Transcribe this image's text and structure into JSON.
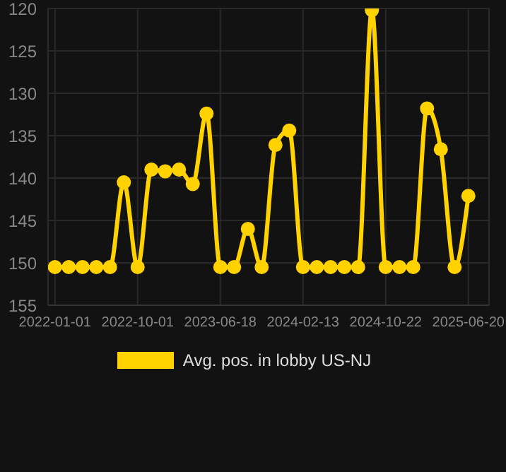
{
  "chart_data": {
    "type": "line",
    "categories": [
      "2022-01-01",
      null,
      null,
      null,
      null,
      null,
      "2022-10-01",
      null,
      null,
      null,
      null,
      null,
      "2023-06-18",
      null,
      null,
      null,
      null,
      null,
      "2024-02-13",
      null,
      null,
      null,
      null,
      null,
      "2024-10-22",
      null,
      null,
      null,
      null,
      null,
      "2025-06-20"
    ],
    "series": [
      {
        "name": "Avg. pos. in lobby US-NJ",
        "color": "#ffd200",
        "values": [
          150.5,
          150.5,
          150.5,
          150.5,
          150.5,
          140.5,
          150.5,
          139,
          139.2,
          139,
          140.7,
          132.4,
          150.5,
          150.5,
          146,
          150.5,
          136.1,
          134.4,
          150.5,
          150.5,
          150.5,
          150.5,
          150.5,
          120.2,
          150.5,
          150.5,
          150.5,
          131.8,
          136.6,
          150.5,
          142.1
        ]
      }
    ],
    "ylim": [
      155,
      120
    ],
    "yticks": [
      120,
      125,
      130,
      135,
      140,
      145,
      150,
      155
    ],
    "grid": true,
    "legend": "bottom",
    "marker": "circle",
    "line_style": "solid"
  }
}
